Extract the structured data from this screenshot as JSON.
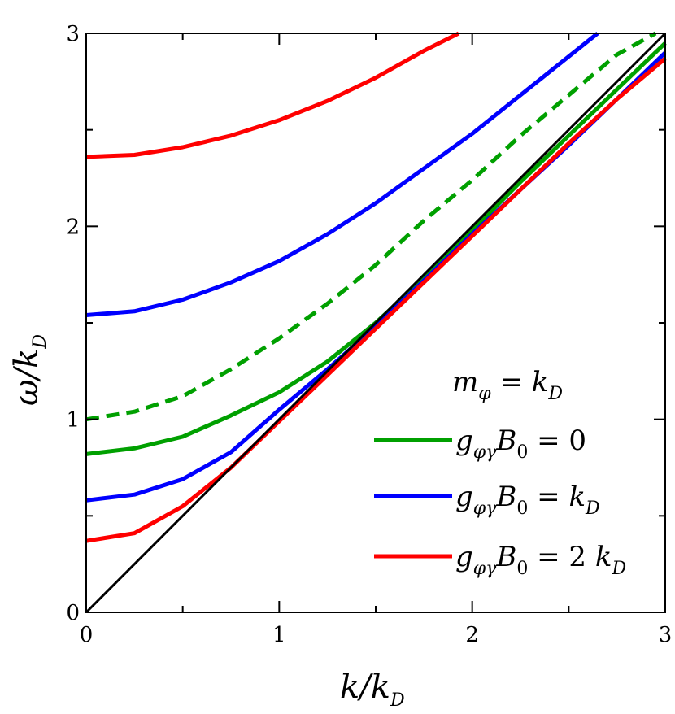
{
  "chart_data": {
    "type": "line",
    "xlabel": "k/k_D",
    "ylabel": "ω/k_D",
    "xlim": [
      0,
      3
    ],
    "ylim": [
      0,
      3
    ],
    "x_ticks": [
      "0",
      "1",
      "2",
      "3"
    ],
    "y_ticks": [
      "0",
      "1",
      "2",
      "3"
    ],
    "grid": false,
    "legend_placement": "right-middle",
    "legend_title": "m_φ = k_D",
    "series": [
      {
        "name": "g_φγ B_0 = 0",
        "color": "#00a000",
        "style": "solid",
        "x": [
          0,
          0.25,
          0.5,
          0.75,
          1.0,
          1.25,
          1.5,
          1.75,
          2.0,
          2.25,
          2.5,
          2.75,
          3.0
        ],
        "y": [
          0.82,
          0.85,
          0.91,
          1.02,
          1.14,
          1.3,
          1.5,
          1.73,
          1.98,
          2.23,
          2.47,
          2.71,
          2.95
        ]
      },
      {
        "name": "g_φγ B_0 = 0",
        "color": "#00a000",
        "style": "dashed",
        "x": [
          0,
          0.25,
          0.5,
          0.75,
          1.0,
          1.25,
          1.5,
          1.75,
          2.0,
          2.25,
          2.5,
          2.75,
          2.95
        ],
        "y": [
          1.0,
          1.04,
          1.12,
          1.26,
          1.42,
          1.6,
          1.8,
          2.03,
          2.24,
          2.47,
          2.68,
          2.89,
          3.0
        ]
      },
      {
        "name": "g_φγ B_0 = k_D",
        "color": "#0000ff",
        "style": "solid",
        "x": [
          0,
          0.25,
          0.5,
          0.75,
          1.0,
          1.25,
          1.5,
          1.75,
          2.0,
          2.25,
          2.5,
          2.75,
          3.0
        ],
        "y": [
          0.58,
          0.61,
          0.69,
          0.83,
          1.05,
          1.26,
          1.48,
          1.72,
          1.96,
          2.19,
          2.42,
          2.66,
          2.9
        ]
      },
      {
        "name": "g_φγ B_0 = k_D",
        "color": "#0000ff",
        "style": "solid",
        "x": [
          0,
          0.25,
          0.5,
          0.75,
          1.0,
          1.25,
          1.5,
          1.75,
          2.0,
          2.25,
          2.5,
          2.65
        ],
        "y": [
          1.54,
          1.56,
          1.62,
          1.71,
          1.82,
          1.96,
          2.12,
          2.3,
          2.48,
          2.68,
          2.88,
          3.0
        ]
      },
      {
        "name": "g_φγ B_0 = 2 k_D",
        "color": "#ff0000",
        "style": "solid",
        "x": [
          0,
          0.25,
          0.5,
          0.75,
          1.0,
          1.25,
          1.5,
          1.75,
          2.0,
          2.25,
          2.5,
          2.75,
          3.0
        ],
        "y": [
          0.37,
          0.41,
          0.55,
          0.75,
          0.99,
          1.23,
          1.47,
          1.71,
          1.95,
          2.19,
          2.43,
          2.66,
          2.87
        ]
      },
      {
        "name": "g_φγ B_0 = 2 k_D",
        "color": "#ff0000",
        "style": "solid",
        "x": [
          0,
          0.25,
          0.5,
          0.75,
          1.0,
          1.25,
          1.5,
          1.75,
          1.93
        ],
        "y": [
          2.36,
          2.37,
          2.41,
          2.47,
          2.55,
          2.65,
          2.77,
          2.91,
          3.0
        ]
      },
      {
        "name": "",
        "color": "#000000",
        "style": "solid",
        "x": [
          0,
          3
        ],
        "y": [
          0,
          3
        ]
      }
    ]
  },
  "legend": {
    "title_main": "m",
    "title_sub": "φ",
    "title_rest": " = k",
    "title_sub2": "D",
    "entries": [
      {
        "color": "#00a000",
        "g": "g",
        "g_sub": "φγ",
        "b": "B",
        "b_sub": "0",
        "eq": " = 0",
        "k": "",
        "k_sub": ""
      },
      {
        "color": "#0000ff",
        "g": "g",
        "g_sub": "φγ",
        "b": "B",
        "b_sub": "0",
        "eq": " = ",
        "k": "k",
        "k_sub": "D"
      },
      {
        "color": "#ff0000",
        "g": "g",
        "g_sub": "φγ",
        "b": "B",
        "b_sub": "0",
        "eq": " = 2 ",
        "k": "k",
        "k_sub": "D"
      }
    ]
  },
  "axes": {
    "xlabel_main": "k/k",
    "xlabel_sub": "D",
    "ylabel_main": "ω/k",
    "ylabel_sub": "D"
  }
}
